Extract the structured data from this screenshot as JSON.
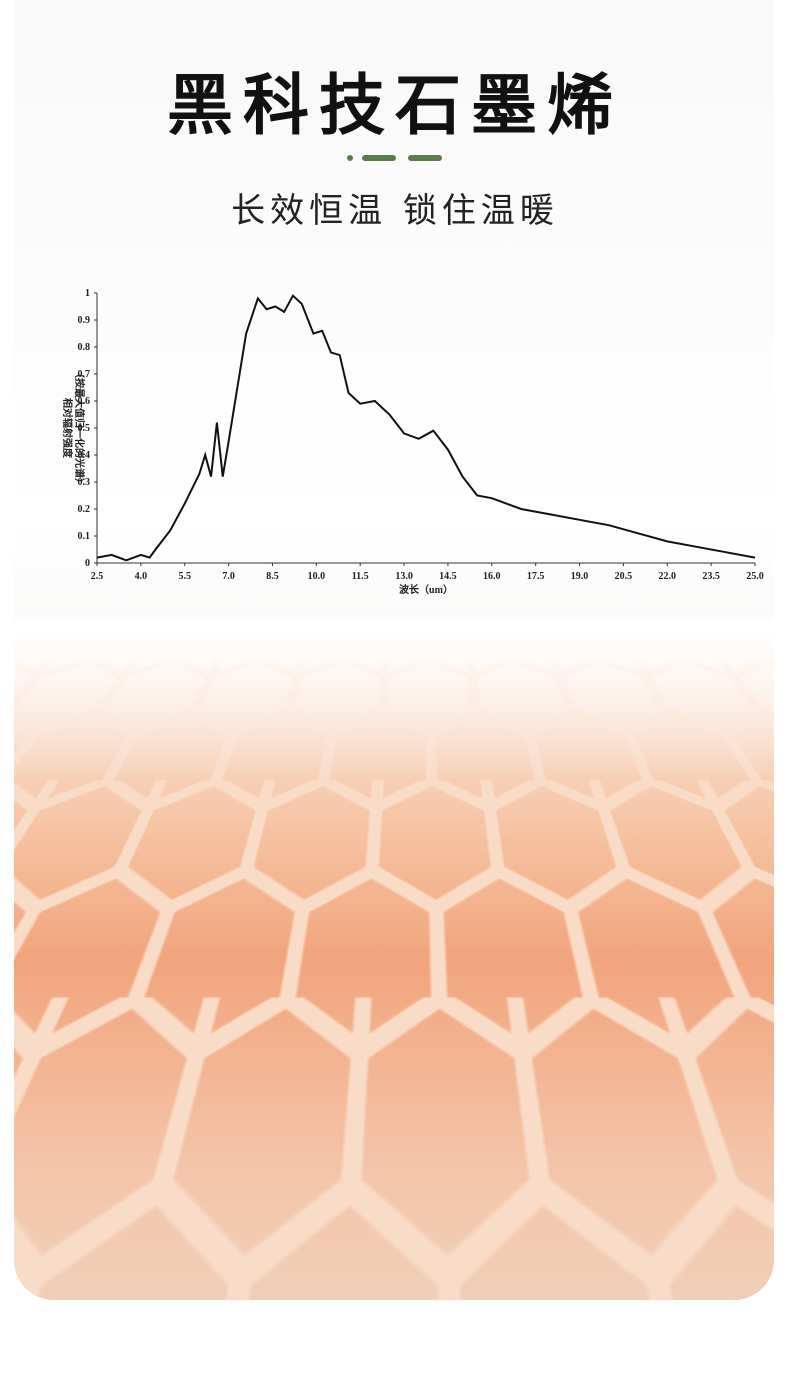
{
  "header": {
    "title": "黑科技石墨烯",
    "subtitle": "长效恒温 锁住温暖"
  },
  "chart_data": {
    "type": "line",
    "x_label": "波长（um）",
    "y_label": [
      "相对辐射强度",
      "（按最大值归一化的光谱）"
    ],
    "x": [
      2.5,
      3.0,
      3.5,
      4.0,
      4.3,
      4.5,
      5.0,
      5.5,
      6.0,
      6.2,
      6.4,
      6.6,
      6.8,
      7.0,
      7.3,
      7.6,
      8.0,
      8.3,
      8.6,
      8.9,
      9.2,
      9.5,
      9.9,
      10.2,
      10.5,
      10.8,
      11.1,
      11.5,
      12.0,
      12.5,
      13.0,
      13.5,
      14.0,
      14.5,
      15.0,
      15.5,
      16.0,
      17.0,
      18.0,
      19.0,
      20.0,
      21.0,
      22.0,
      23.0,
      24.0,
      25.0
    ],
    "series": [
      {
        "color": "#111111",
        "values": [
          0.02,
          0.03,
          0.01,
          0.03,
          0.02,
          0.05,
          0.12,
          0.22,
          0.33,
          0.4,
          0.32,
          0.52,
          0.32,
          0.45,
          0.65,
          0.85,
          0.98,
          0.94,
          0.95,
          0.93,
          0.99,
          0.96,
          0.85,
          0.86,
          0.78,
          0.77,
          0.63,
          0.59,
          0.6,
          0.55,
          0.48,
          0.46,
          0.49,
          0.42,
          0.32,
          0.25,
          0.24,
          0.2,
          0.18,
          0.16,
          0.14,
          0.11,
          0.08,
          0.06,
          0.04,
          0.02
        ]
      }
    ],
    "xlim": [
      2.5,
      25.0
    ],
    "ylim": [
      0,
      1
    ],
    "xticks": [
      2.5,
      {
        "value": 4,
        "label": "4.0"
      },
      5.5,
      {
        "value": 7,
        "label": "7.0"
      },
      8.5,
      {
        "value": 10,
        "label": "10.0"
      },
      11.5,
      {
        "value": 13,
        "label": "13.0"
      },
      14.5,
      {
        "value": 16,
        "label": "16.0"
      },
      17.5,
      {
        "value": 19,
        "label": "19.0"
      },
      20.5,
      {
        "value": 22,
        "label": "22.0"
      },
      23.5,
      {
        "value": 25,
        "label": "25.0"
      }
    ],
    "yticks": [
      0,
      0.1,
      0.2,
      0.3,
      0.4,
      0.5,
      0.6,
      0.7,
      0.8,
      0.9,
      1
    ]
  }
}
